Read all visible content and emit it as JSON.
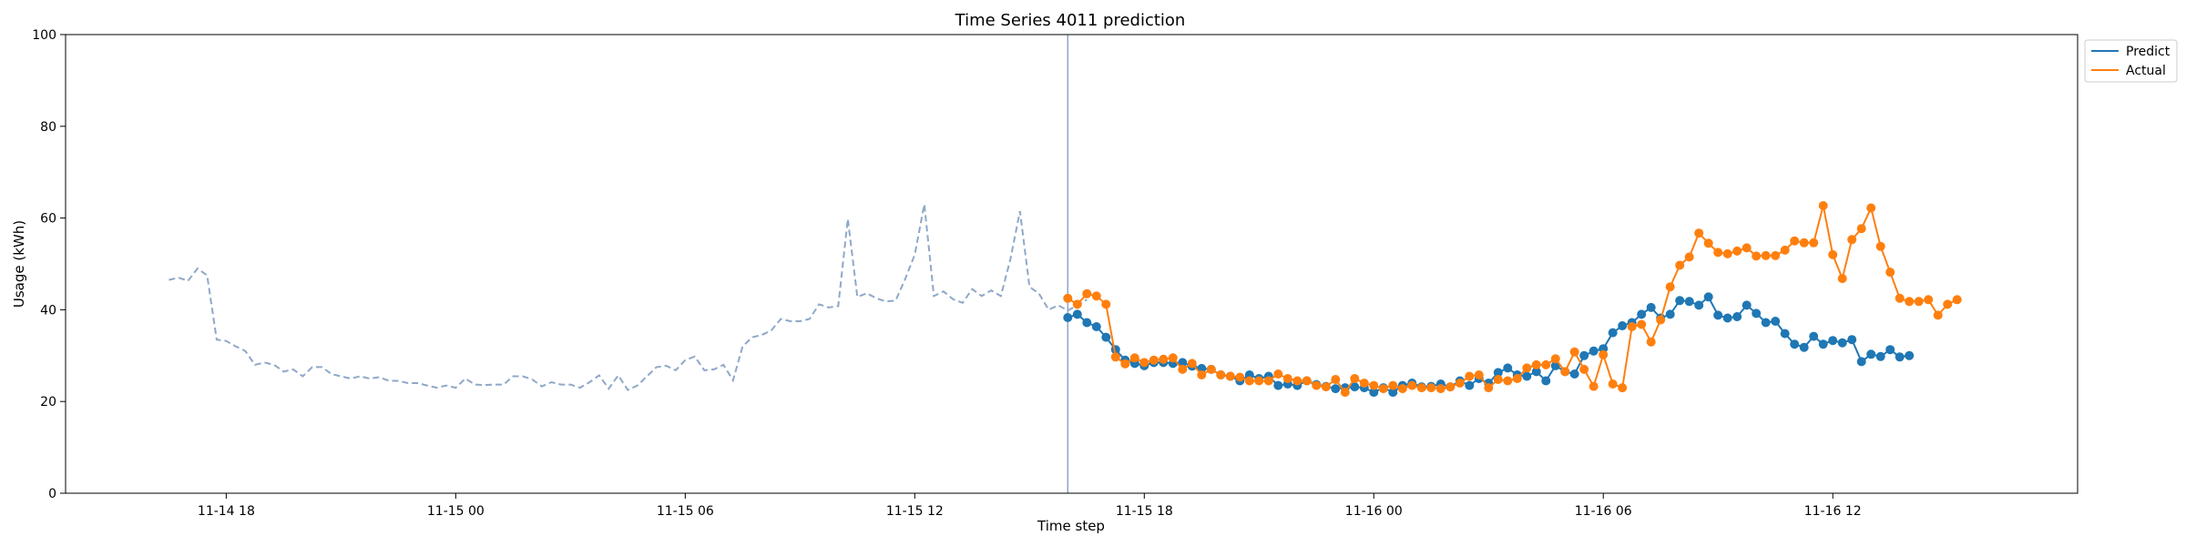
{
  "chart_data": {
    "type": "line",
    "title": "Time Series 4011 prediction",
    "xlabel": "Time step",
    "ylabel": "Usage (kWh)",
    "ylim": [
      0,
      100
    ],
    "yticks": [
      0,
      20,
      40,
      60,
      80,
      100
    ],
    "xticks": [
      {
        "label": "11-14 18",
        "hours": 18
      },
      {
        "label": "11-15 00",
        "hours": 24
      },
      {
        "label": "11-15 06",
        "hours": 30
      },
      {
        "label": "11-15 12",
        "hours": 36
      },
      {
        "label": "11-15 18",
        "hours": 42
      },
      {
        "label": "11-16 00",
        "hours": 48
      },
      {
        "label": "11-16 06",
        "hours": 54
      },
      {
        "label": "11-16 12",
        "hours": 60
      }
    ],
    "xlim_hours": [
      13.8,
      66.4
    ],
    "vline_hours": 40,
    "grid": false,
    "legend": "top-right",
    "colors": {
      "history": "#8fa8c8",
      "predict": "#1f77b4",
      "actual": "#ff7f0e",
      "vline": "#8ea4cc"
    },
    "history": {
      "start_hours": 16.5,
      "step_hours": 0.25,
      "values": [
        46.5,
        47,
        46.3,
        49,
        47.5,
        33.5,
        33.2,
        32,
        31,
        28,
        28.5,
        28,
        26.5,
        27,
        25.5,
        27.5,
        27.5,
        26,
        25.5,
        25,
        25.5,
        25,
        25.3,
        24.5,
        24.5,
        24,
        24,
        23.5,
        23,
        23.5,
        23,
        25,
        23.7,
        23.6,
        23.7,
        23.7,
        25.5,
        25.5,
        24.8,
        23.3,
        24.2,
        23.7,
        23.7,
        23,
        24.2,
        25.7,
        22.8,
        25.7,
        22.5,
        23.5,
        25.5,
        27.5,
        27.8,
        26.8,
        29,
        29.8,
        26.8,
        27,
        28,
        24.6,
        32,
        34,
        34.5,
        35.5,
        38,
        37.5,
        37.5,
        38,
        41.2,
        40.5,
        40.8,
        59.8,
        42.8,
        43.6,
        42.5,
        41.8,
        42,
        46.7,
        52,
        63,
        43,
        44,
        42.3,
        41.5,
        44.5,
        43,
        44.2,
        43,
        51,
        61.5,
        45,
        43.5,
        40,
        41,
        39.8,
        41,
        42.2
      ]
    },
    "series": [
      {
        "name": "Predict",
        "start_hours": 40,
        "step_hours": 0.25,
        "values": [
          38.3,
          39,
          37.2,
          36.3,
          34,
          31.3,
          29,
          28.3,
          27.8,
          28.5,
          28.5,
          28.3,
          28.5,
          27.7,
          27.2,
          27,
          25.8,
          25.5,
          24.5,
          25.8,
          25,
          25.5,
          23.5,
          23.8,
          23.5,
          24.5,
          23.7,
          23.3,
          22.8,
          23,
          23.2,
          23,
          22,
          23,
          22,
          23.5,
          24,
          23.2,
          23.3,
          23.8,
          23.2,
          24.5,
          23.5,
          25,
          24,
          26.3,
          27.3,
          25.8,
          25.5,
          26.5,
          24.5,
          27.8,
          26.5,
          26,
          30,
          31,
          31.5,
          35,
          36.5,
          37.2,
          39,
          40.5,
          38.2,
          39,
          42,
          41.8,
          41,
          42.8,
          38.8,
          38.2,
          38.5,
          41,
          39.2,
          37.2,
          37.5,
          34.8,
          32.5,
          31.8,
          34.2,
          32.5,
          33.3,
          32.8,
          33.5,
          28.7,
          30.3,
          29.8,
          31.3,
          29.7,
          30
        ]
      },
      {
        "name": "Actual",
        "start_hours": 40,
        "step_hours": 0.25,
        "values": [
          42.5,
          41.2,
          43.5,
          43,
          41.2,
          29.7,
          28.2,
          29.5,
          28.5,
          29,
          29.2,
          29.5,
          27,
          28.3,
          25.8,
          27,
          25.8,
          25.5,
          25.3,
          24.5,
          24.5,
          24.5,
          26,
          25,
          24.5,
          24.5,
          23.5,
          23.2,
          24.8,
          22,
          25,
          24,
          23.5,
          22.8,
          23.5,
          22.8,
          23.5,
          23,
          23,
          22.8,
          23.2,
          24,
          25.5,
          25.8,
          23,
          24.8,
          24.5,
          25,
          27.3,
          28,
          28,
          29.3,
          26.5,
          30.8,
          27,
          23.3,
          30.2,
          23.8,
          23,
          36.3,
          36.8,
          33,
          37.8,
          45,
          49.7,
          51.5,
          56.7,
          54.5,
          52.5,
          52.2,
          52.8,
          53.5,
          51.7,
          51.8,
          51.8,
          53,
          55,
          54.6,
          54.6,
          62.7,
          52,
          46.8,
          55.3,
          57.7,
          62.2,
          53.8,
          48.2,
          42.5,
          41.8,
          41.8,
          42.2,
          38.8,
          41.2,
          42.2
        ]
      }
    ]
  }
}
